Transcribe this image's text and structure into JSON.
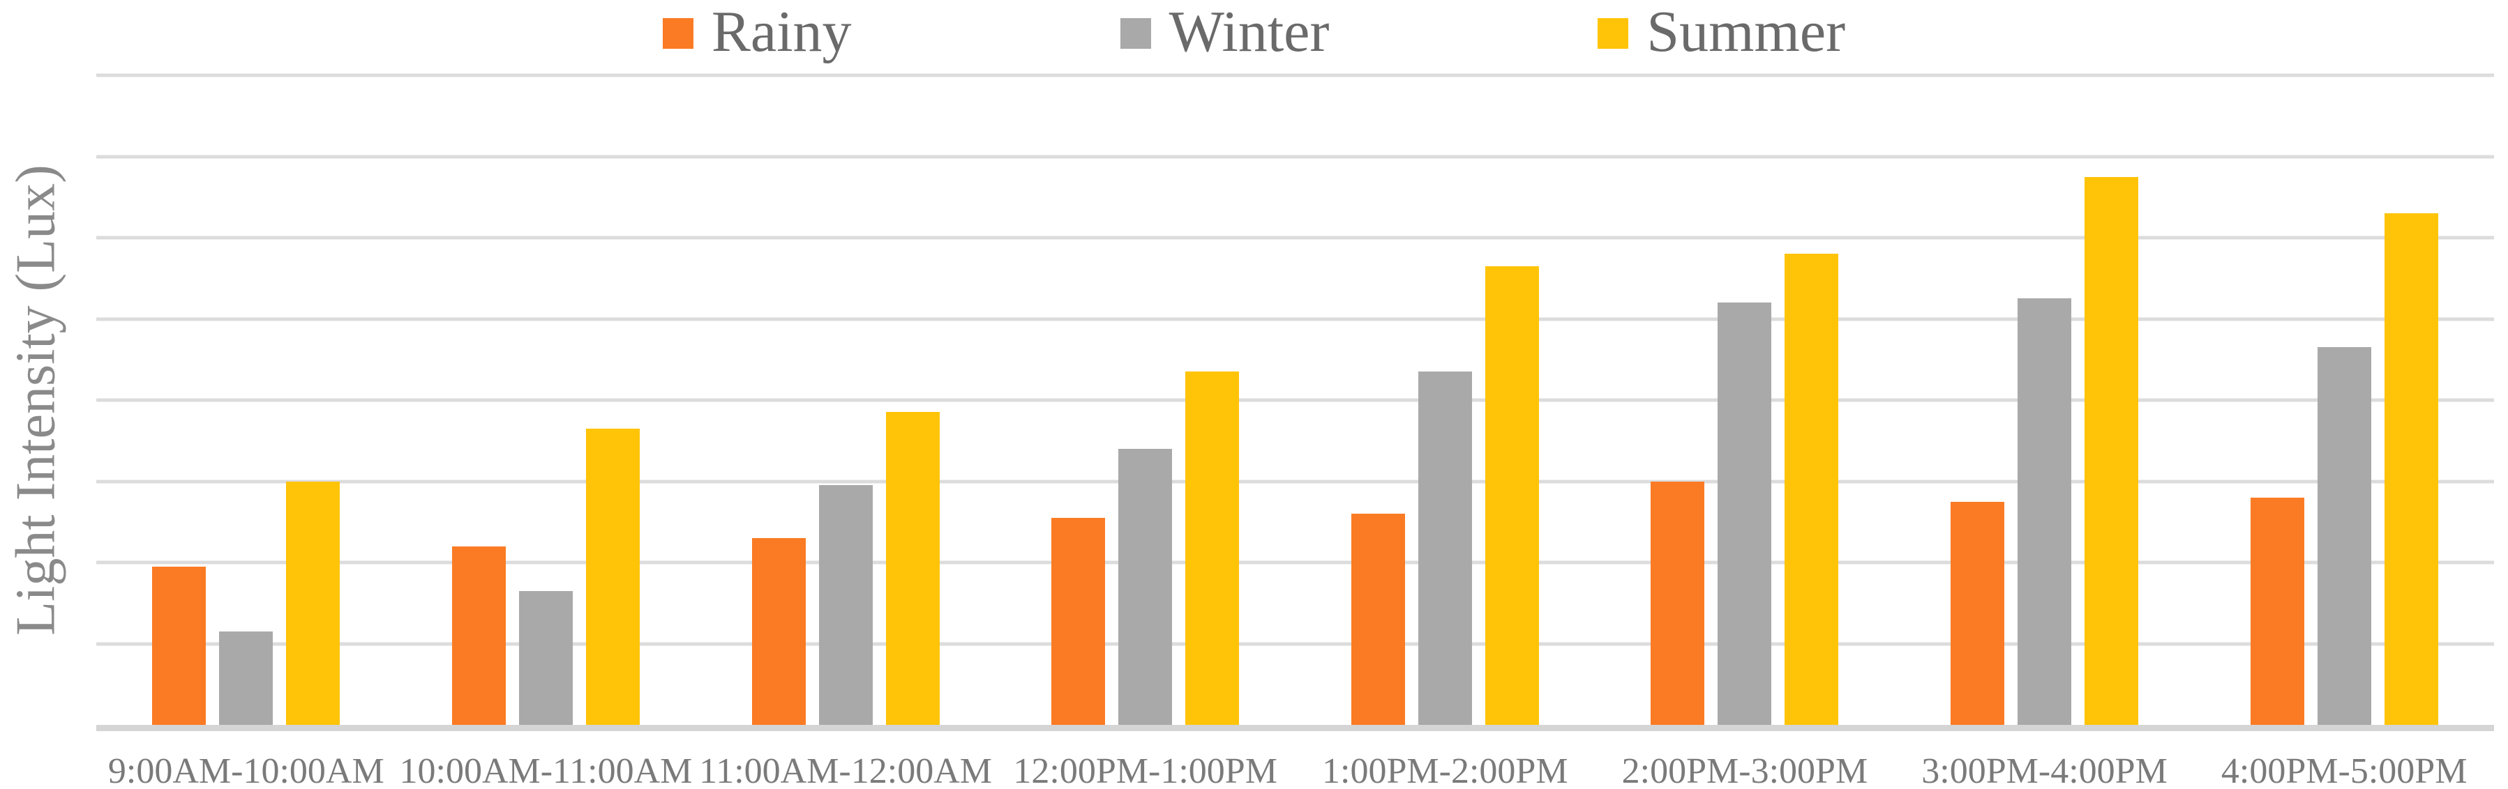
{
  "colors": {
    "background": "#FFFFFF",
    "gridline": "#DCDCDC",
    "baseline": "#D5D5D5",
    "legend_text": "#6A6A6A",
    "axis_text": "#7A7A7A",
    "y_title_text": "#8A8A8A",
    "rainy": "#FB7B24",
    "winter": "#A9A9A9",
    "summer": "#FFC408"
  },
  "chart_data": {
    "type": "bar",
    "title": "",
    "xlabel": "",
    "ylabel": "Light Intensity (Lux)",
    "legend_position": "top",
    "grid": "horizontal gridlines on, y tick labels not shown",
    "y_axis_tick_labels": "none",
    "y_units": "gridline intervals (unlabeled axis, 8 equal intervals)",
    "ylim": [
      0,
      8
    ],
    "categories": [
      "9:00AM-10:00AM",
      "10:00AM-11:00AM",
      "11:00AM-12:00AM",
      "12:00PM-1:00PM",
      "1:00PM-2:00PM",
      "2:00PM-3:00PM",
      "3:00PM-4:00PM",
      "4:00PM-5:00PM"
    ],
    "series": [
      {
        "name": "Rainy",
        "color": "#FB7B24",
        "values": [
          1.95,
          2.2,
          2.3,
          2.55,
          2.6,
          3.0,
          2.75,
          2.8
        ]
      },
      {
        "name": "Winter",
        "color": "#A9A9A9",
        "values": [
          1.15,
          1.65,
          2.95,
          3.4,
          4.35,
          5.2,
          5.25,
          4.65
        ]
      },
      {
        "name": "Summer",
        "color": "#FFC408",
        "values": [
          3.0,
          3.65,
          3.85,
          4.35,
          5.65,
          5.8,
          6.75,
          6.3
        ]
      }
    ]
  }
}
